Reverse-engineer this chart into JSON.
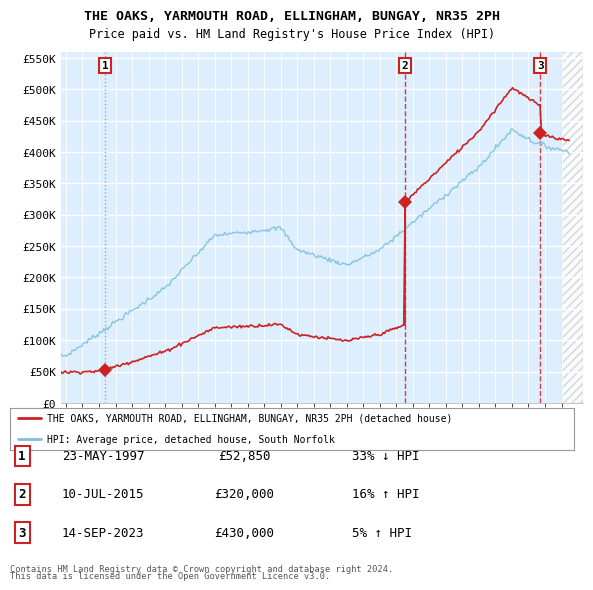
{
  "title": "THE OAKS, YARMOUTH ROAD, ELLINGHAM, BUNGAY, NR35 2PH",
  "subtitle": "Price paid vs. HM Land Registry's House Price Index (HPI)",
  "sale_dates": [
    "23-MAY-1997",
    "10-JUL-2015",
    "14-SEP-2023"
  ],
  "sale_years": [
    1997.38,
    2015.52,
    2023.71
  ],
  "sale_prices": [
    52850,
    320000,
    430000
  ],
  "sale_labels": [
    "1",
    "2",
    "3"
  ],
  "sale_pct": [
    "33% ↓ HPI",
    "16% ↑ HPI",
    "5% ↑ HPI"
  ],
  "hpi_color": "#7fbfdf",
  "house_color": "#cc2222",
  "sale1_vline_color": "#999999",
  "sale23_vline_color": "#cc2222",
  "plot_bg": "#ddeeff",
  "ylim": [
    0,
    560000
  ],
  "xlim": [
    1994.7,
    2026.3
  ],
  "legend_line1": "THE OAKS, YARMOUTH ROAD, ELLINGHAM, BUNGAY, NR35 2PH (detached house)",
  "legend_line2": "HPI: Average price, detached house, South Norfolk",
  "footer1": "Contains HM Land Registry data © Crown copyright and database right 2024.",
  "footer2": "This data is licensed under the Open Government Licence v3.0.",
  "table_rows": [
    [
      "1",
      "23-MAY-1997",
      "£52,850",
      "33% ↓ HPI"
    ],
    [
      "2",
      "10-JUL-2015",
      "£320,000",
      "16% ↑ HPI"
    ],
    [
      "3",
      "14-SEP-2023",
      "£430,000",
      "5% ↑ HPI"
    ]
  ]
}
